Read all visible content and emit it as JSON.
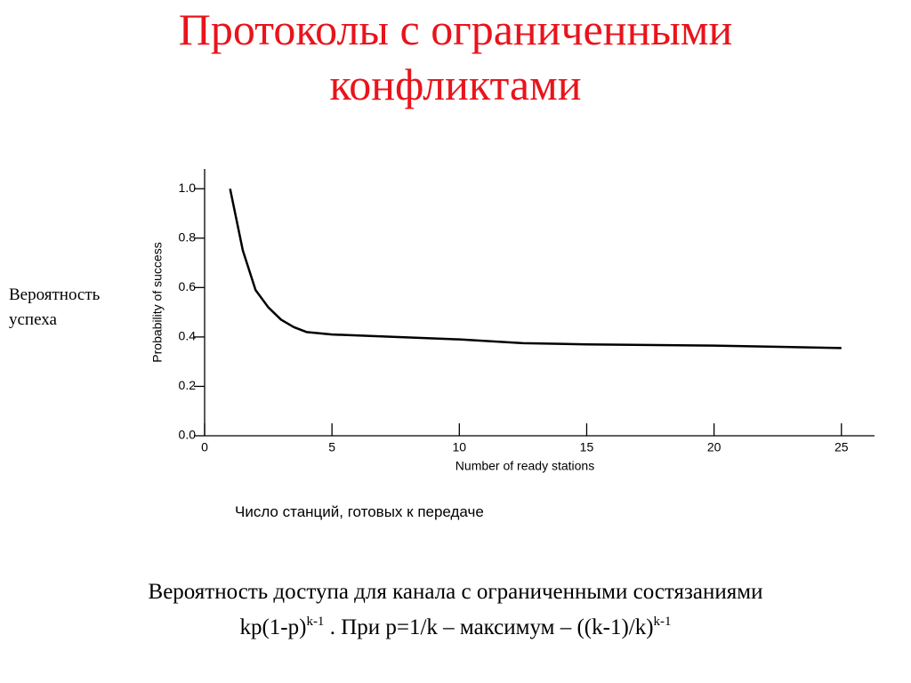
{
  "title_lines": [
    "Протоколы с ограниченными",
    "конфликтами"
  ],
  "side_label_lines": [
    "Вероятность",
    "успеха"
  ],
  "caption": "Число станций, готовых к передаче",
  "footer": {
    "line1": "Вероятность доступа для канала с ограниченными состязаниями",
    "formula": [
      "kp(1-p)",
      "k-1",
      " . При p=1/k – максимум – ((k-1)/k)",
      "k-1"
    ]
  },
  "chart_data": {
    "type": "line",
    "xlabel": "Number of ready stations",
    "ylabel": "Probability of success",
    "x": [
      1,
      1.5,
      2,
      2.5,
      3,
      3.5,
      4,
      5,
      7.5,
      10,
      12.5,
      15,
      20,
      25
    ],
    "series": [
      {
        "name": "Probability of success",
        "color": "#000000",
        "values": [
          1.0,
          0.75,
          0.59,
          0.52,
          0.47,
          0.44,
          0.42,
          0.41,
          0.4,
          0.39,
          0.375,
          0.37,
          0.365,
          0.355
        ]
      }
    ],
    "xlim": [
      0,
      26.3
    ],
    "ylim": [
      0,
      1.08
    ],
    "xticks": [
      0,
      5,
      10,
      15,
      20,
      25
    ],
    "yticks": [
      {
        "value": 0,
        "label": "0.0"
      },
      0.2,
      0.4,
      0.6,
      0.8,
      {
        "value": 1,
        "label": "1.0"
      }
    ]
  }
}
